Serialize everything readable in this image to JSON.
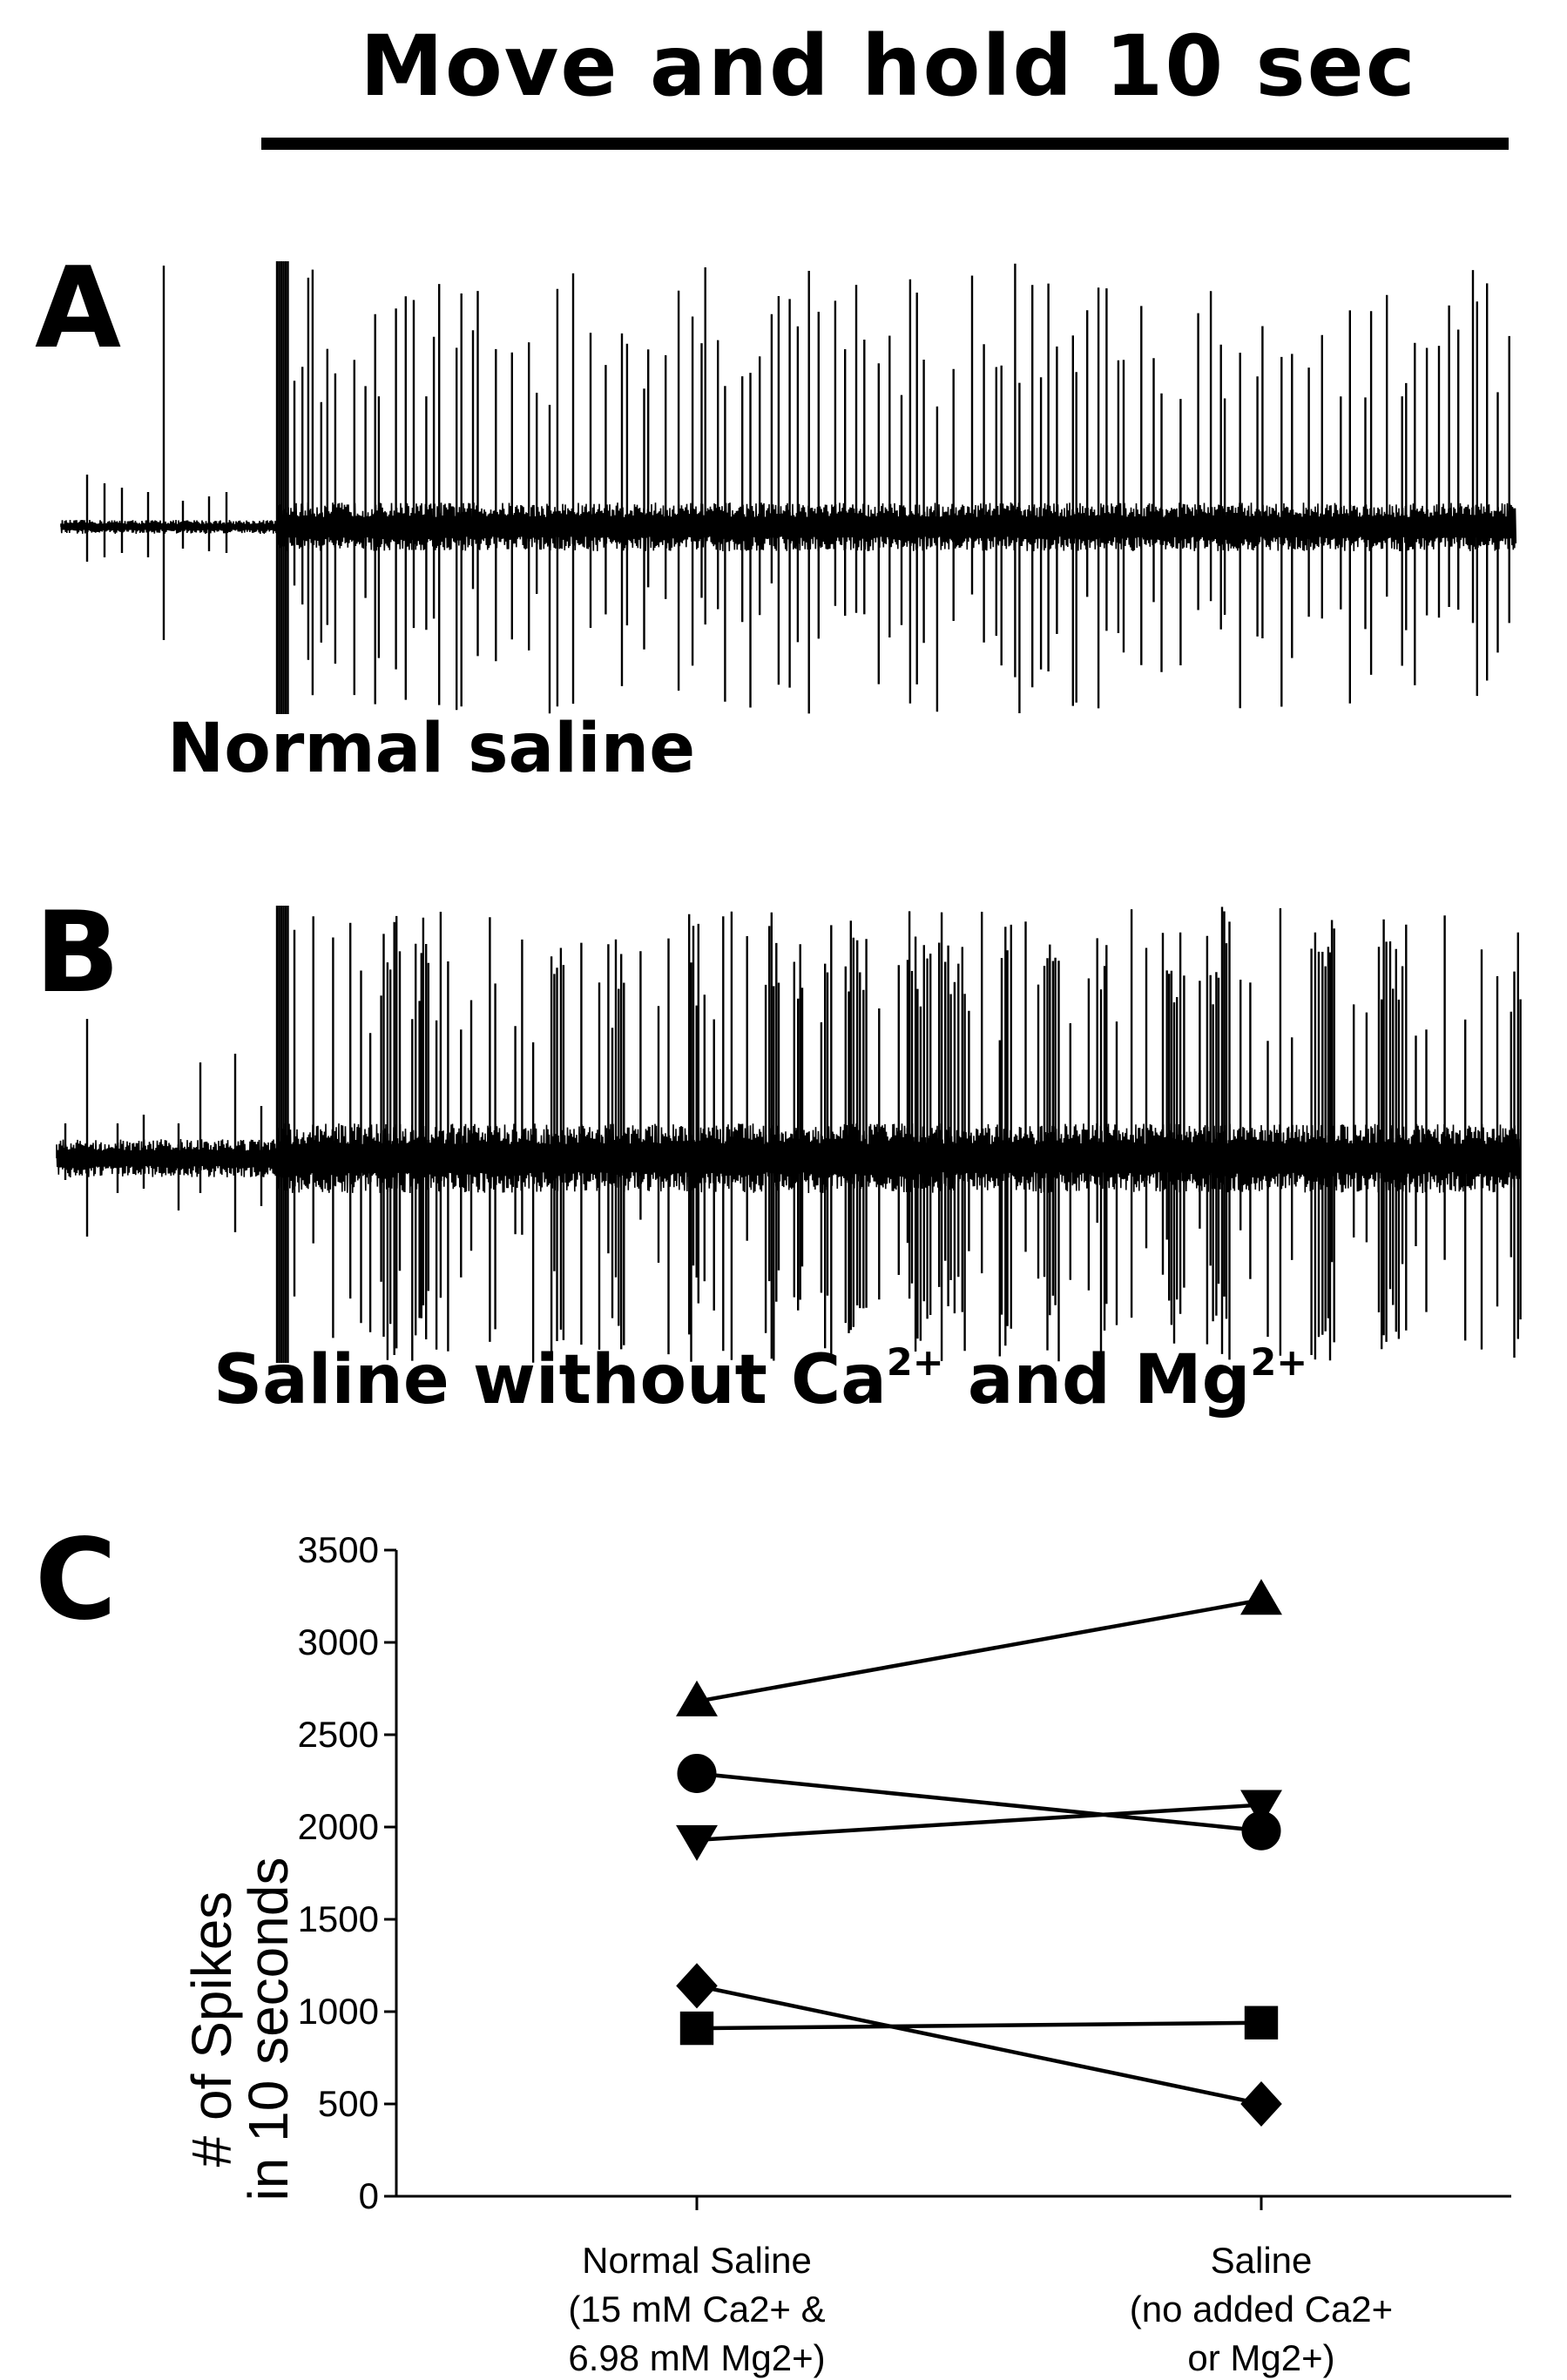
{
  "title": "Move and hold 10 sec",
  "panels": {
    "a": {
      "letter": "A",
      "label": "Normal saline"
    },
    "b": {
      "letter": "B",
      "label_main": "Saline without Ca",
      "label_sup1": "2+",
      "label_mid": " and Mg",
      "label_sup2": "2+"
    },
    "c": {
      "letter": "C"
    }
  },
  "chart_data": {
    "type": "line",
    "ylabel_line1": "# of Spikes",
    "ylabel_line2": "in 10 seconds",
    "ylim": [
      0,
      3500
    ],
    "yticks": [
      "0",
      "500",
      "1000",
      "1500",
      "2000",
      "2500",
      "3000",
      "3500"
    ],
    "categories": [
      [
        "Normal  Saline",
        "(15 mM Ca2+ &",
        "6.98 mM Mg2+)"
      ],
      [
        "Saline",
        "(no added Ca2+",
        "or Mg2+)"
      ]
    ],
    "series": [
      {
        "marker": "triangle-up",
        "values": [
          2680,
          3230
        ]
      },
      {
        "marker": "circle",
        "values": [
          2290,
          1980
        ]
      },
      {
        "marker": "triangle-down",
        "values": [
          1930,
          2120
        ]
      },
      {
        "marker": "diamond",
        "values": [
          1140,
          500
        ]
      },
      {
        "marker": "square",
        "values": [
          910,
          940
        ]
      }
    ],
    "grid": false,
    "marker_color": "#000000"
  }
}
